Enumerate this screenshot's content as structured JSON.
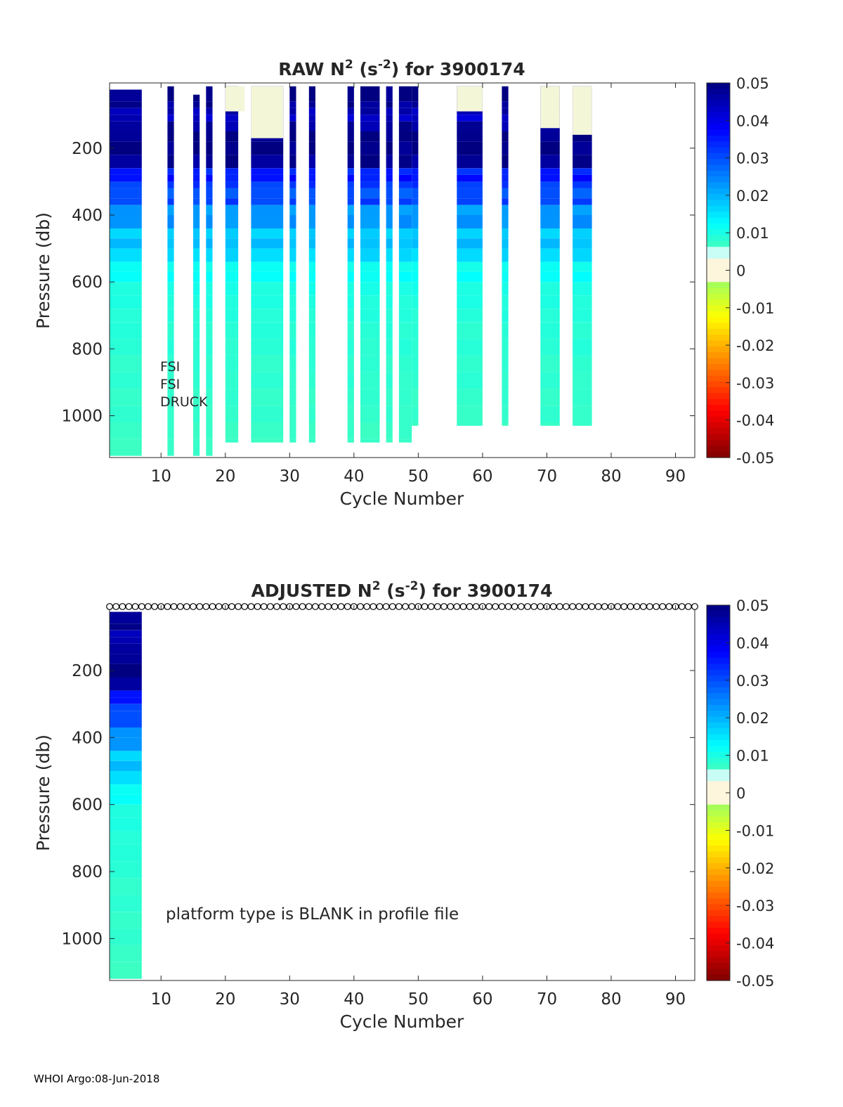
{
  "footer": "WHOI Argo:08-Jun-2018",
  "chart_data": [
    {
      "type": "heatmap",
      "title": {
        "prefix": "RAW N",
        "sup1": "2",
        "mid": " (s",
        "sup2": "-2",
        "suffix": ") for 3900174"
      },
      "xlabel": "Cycle Number",
      "ylabel": "Pressure (db)",
      "xlim": [
        2,
        93
      ],
      "ylim": [
        1125,
        5
      ],
      "xticks": [
        10,
        20,
        30,
        40,
        50,
        60,
        70,
        80,
        90
      ],
      "yticks": [
        200,
        400,
        600,
        800,
        1000
      ],
      "colorbar": {
        "clim": [
          -0.05,
          0.05
        ],
        "ticks": [
          "0.05",
          "0.04",
          "0.03",
          "0.02",
          "0.01",
          "0",
          "-0.01",
          "-0.02",
          "-0.03",
          "-0.04",
          "-0.05"
        ]
      },
      "annotations": [
        "FSI",
        "FSI",
        "DRUCK"
      ],
      "profiles": [
        {
          "cycles": [
            2,
            7
          ],
          "top": 25,
          "bottom": 1125
        },
        {
          "cycles": [
            11,
            12
          ],
          "top": 15,
          "bottom": 1125
        },
        {
          "cycles": [
            15,
            16
          ],
          "top": 40,
          "bottom": 1125
        },
        {
          "cycles": [
            17,
            18
          ],
          "top": 15,
          "bottom": 1125
        },
        {
          "cycles": [
            20,
            22
          ],
          "top": 15,
          "bottom": 1080
        },
        {
          "cycles": [
            24,
            29
          ],
          "top": 15,
          "bottom": 1080
        },
        {
          "cycles": [
            30,
            31
          ],
          "top": 15,
          "bottom": 1080
        },
        {
          "cycles": [
            33,
            34
          ],
          "top": 15,
          "bottom": 1080
        },
        {
          "cycles": [
            39,
            40
          ],
          "top": 15,
          "bottom": 1080
        },
        {
          "cycles": [
            41,
            44
          ],
          "top": 15,
          "bottom": 1080
        },
        {
          "cycles": [
            45,
            46
          ],
          "top": 15,
          "bottom": 1080
        },
        {
          "cycles": [
            47,
            49
          ],
          "top": 15,
          "bottom": 1080
        },
        {
          "cycles": [
            49,
            50
          ],
          "top": 15,
          "bottom": 1030
        },
        {
          "cycles": [
            56,
            60
          ],
          "top": 15,
          "bottom": 1030
        },
        {
          "cycles": [
            63,
            64
          ],
          "top": 15,
          "bottom": 1030
        },
        {
          "cycles": [
            69,
            72
          ],
          "top": 15,
          "bottom": 1030
        },
        {
          "cycles": [
            74,
            77
          ],
          "top": 15,
          "bottom": 1030
        }
      ],
      "surface_profile": [
        [
          40,
          0.05
        ],
        [
          60,
          0.048
        ],
        [
          80,
          0.045
        ],
        [
          100,
          0.043
        ],
        [
          130,
          0.047
        ],
        [
          160,
          0.05
        ],
        [
          200,
          0.05
        ],
        [
          240,
          0.048
        ],
        [
          260,
          0.034
        ],
        [
          280,
          0.036
        ],
        [
          300,
          0.032
        ],
        [
          330,
          0.029
        ],
        [
          350,
          0.031
        ],
        [
          380,
          0.022
        ],
        [
          420,
          0.023
        ],
        [
          450,
          0.017
        ],
        [
          480,
          0.019
        ],
        [
          520,
          0.016
        ],
        [
          550,
          0.011
        ],
        [
          580,
          0.012
        ],
        [
          620,
          0.01
        ],
        [
          660,
          0.0095
        ],
        [
          700,
          0.009
        ],
        [
          750,
          0.0085
        ],
        [
          800,
          0.0085
        ],
        [
          850,
          0.008
        ],
        [
          900,
          0.008
        ],
        [
          950,
          0.0075
        ],
        [
          1000,
          0.0075
        ],
        [
          1050,
          0.007
        ],
        [
          1100,
          0.007
        ]
      ],
      "near_zero_caps": [
        {
          "cycles": [
            20,
            23
          ],
          "bottom": 90
        },
        {
          "cycles": [
            24,
            29
          ],
          "bottom": 170
        },
        {
          "cycles": [
            56,
            60
          ],
          "bottom": 90
        },
        {
          "cycles": [
            69,
            72
          ],
          "bottom": 140
        },
        {
          "cycles": [
            74,
            77
          ],
          "bottom": 160
        }
      ]
    },
    {
      "type": "heatmap",
      "title": {
        "prefix": "ADJUSTED N",
        "sup1": "2",
        "mid": " (s",
        "sup2": "-2",
        "suffix": ") for 3900174"
      },
      "xlabel": "Cycle Number",
      "ylabel": "Pressure (db)",
      "xlim": [
        2,
        93
      ],
      "ylim": [
        1125,
        5
      ],
      "xticks": [
        10,
        20,
        30,
        40,
        50,
        60,
        70,
        80,
        90
      ],
      "yticks": [
        200,
        400,
        600,
        800,
        1000
      ],
      "colorbar": {
        "clim": [
          -0.05,
          0.05
        ],
        "ticks": [
          "0.05",
          "0.04",
          "0.03",
          "0.02",
          "0.01",
          "0",
          "-0.01",
          "-0.02",
          "-0.03",
          "-0.04",
          "-0.05"
        ]
      },
      "annotations": [
        "platform type is BLANK in profile file"
      ],
      "profiles": [
        {
          "cycles": [
            2,
            7
          ],
          "top": 25,
          "bottom": 1125
        }
      ],
      "flag_markers": {
        "pressure": 5,
        "cycles": [
          2,
          93
        ]
      }
    }
  ]
}
